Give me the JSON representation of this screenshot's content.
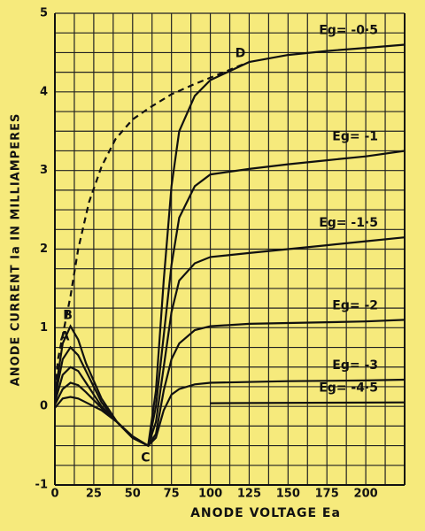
{
  "chart_data": {
    "type": "line",
    "x_label": "ANODE VOLTAGE Ea",
    "y_label": "ANODE CURRENT Ia IN MILLIAMPERES",
    "xlim": [
      0,
      225
    ],
    "ylim": [
      -1,
      5
    ],
    "xticks": [
      0,
      25,
      50,
      75,
      100,
      125,
      150,
      175,
      200
    ],
    "yticks": [
      -1,
      0,
      1,
      2,
      3,
      4,
      5
    ],
    "grid": true,
    "series": [
      {
        "name": "Eg= -0·5",
        "color": "#111111",
        "x": [
          0,
          5,
          10,
          15,
          20,
          30,
          40,
          50,
          60,
          65,
          70,
          75,
          80,
          90,
          100,
          125,
          150,
          175,
          200,
          225
        ],
        "values": [
          0.15,
          0.8,
          1.02,
          0.85,
          0.55,
          0.1,
          -0.2,
          -0.4,
          -0.5,
          0.2,
          1.6,
          2.8,
          3.5,
          3.95,
          4.15,
          4.38,
          4.47,
          4.52,
          4.56,
          4.6
        ]
      },
      {
        "name": "Eg= -1",
        "color": "#111111",
        "x": [
          0,
          5,
          10,
          15,
          20,
          30,
          40,
          50,
          60,
          65,
          70,
          75,
          80,
          90,
          100,
          125,
          150,
          175,
          200,
          225
        ],
        "values": [
          0.1,
          0.6,
          0.75,
          0.65,
          0.45,
          0.05,
          -0.2,
          -0.4,
          -0.5,
          0.0,
          0.9,
          1.8,
          2.4,
          2.8,
          2.95,
          3.02,
          3.08,
          3.13,
          3.18,
          3.25
        ]
      },
      {
        "name": "Eg= -1·5",
        "color": "#111111",
        "x": [
          0,
          5,
          10,
          15,
          20,
          30,
          40,
          50,
          60,
          65,
          70,
          75,
          80,
          90,
          100,
          125,
          150,
          175,
          200,
          225
        ],
        "values": [
          0.05,
          0.4,
          0.5,
          0.45,
          0.3,
          0.0,
          -0.2,
          -0.4,
          -0.5,
          -0.2,
          0.5,
          1.2,
          1.6,
          1.82,
          1.9,
          1.95,
          2.0,
          2.05,
          2.1,
          2.15
        ]
      },
      {
        "name": "Eg= -2",
        "color": "#111111",
        "x": [
          0,
          5,
          10,
          15,
          20,
          30,
          40,
          50,
          60,
          65,
          70,
          75,
          80,
          90,
          100,
          125,
          150,
          175,
          200,
          225
        ],
        "values": [
          0.02,
          0.22,
          0.3,
          0.27,
          0.18,
          -0.02,
          -0.2,
          -0.4,
          -0.5,
          -0.35,
          0.2,
          0.6,
          0.8,
          0.97,
          1.02,
          1.05,
          1.06,
          1.07,
          1.08,
          1.1
        ]
      },
      {
        "name": "Eg= -3",
        "color": "#111111",
        "x": [
          0,
          5,
          10,
          15,
          20,
          30,
          40,
          50,
          60,
          65,
          70,
          75,
          80,
          90,
          100,
          150,
          200,
          225
        ],
        "values": [
          -0.02,
          0.1,
          0.12,
          0.1,
          0.05,
          -0.05,
          -0.2,
          -0.38,
          -0.5,
          -0.4,
          -0.05,
          0.15,
          0.22,
          0.28,
          0.3,
          0.32,
          0.33,
          0.34
        ]
      },
      {
        "name": "Eg= -4·5",
        "color": "#111111",
        "x": [
          100,
          225
        ],
        "values": [
          0.04,
          0.05
        ]
      },
      {
        "color": "#111111",
        "dashed": true,
        "x": [
          0,
          2,
          6,
          10,
          15,
          22,
          30,
          39,
          50,
          61,
          75,
          90,
          105,
          121
        ],
        "values": [
          0.2,
          0.6,
          1.0,
          1.4,
          2.0,
          2.6,
          3.05,
          3.4,
          3.65,
          3.8,
          3.97,
          4.1,
          4.22,
          4.35
        ]
      }
    ],
    "annotations": [
      {
        "text": "A",
        "x": 8,
        "y": 0.75
      },
      {
        "text": "B",
        "x": 10,
        "y": 1.02
      },
      {
        "text": "C",
        "x": 60,
        "y": -0.5
      },
      {
        "text": "D",
        "x": 121,
        "y": 4.35
      }
    ]
  }
}
